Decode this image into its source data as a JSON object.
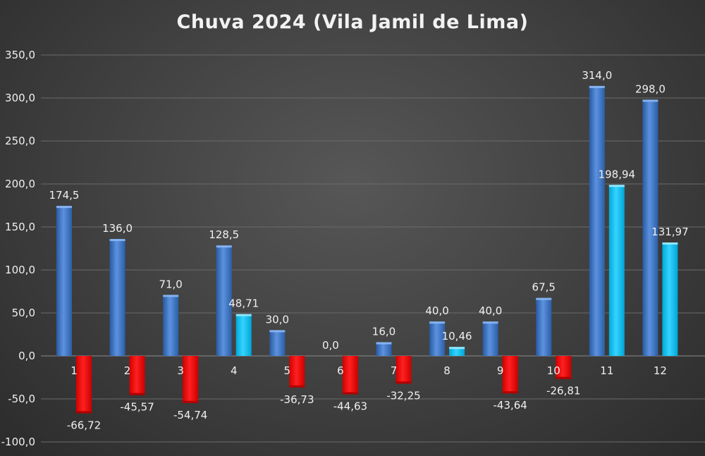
{
  "chart_data": {
    "type": "bar",
    "title": "Chuva 2024 (Vila Jamil de Lima)",
    "categories": [
      "1",
      "2",
      "3",
      "4",
      "5",
      "6",
      "7",
      "8",
      "9",
      "10",
      "11",
      "12"
    ],
    "series": [
      {
        "values": [
          174.5,
          136.0,
          71.0,
          128.5,
          30.0,
          0.0,
          16.0,
          40.0,
          40.0,
          67.5,
          314.0,
          298.0
        ],
        "labels": [
          "174,5",
          "136,0",
          "71,0",
          "128,5",
          "30,0",
          "0,0",
          "16,0",
          "40,0",
          "40,0",
          "67,5",
          "314,0",
          "298,0"
        ]
      },
      {
        "values": [
          -66.72,
          -45.57,
          -54.74,
          48.71,
          -36.73,
          -44.63,
          -32.25,
          10.46,
          -43.64,
          -26.81,
          198.94,
          131.97
        ],
        "labels": [
          "-66,72",
          "-45,57",
          "-54,74",
          "48,71",
          "-36,73",
          "-44,63",
          "-32,25",
          "10,46",
          "-43,64",
          "-26,81",
          "198,94",
          "131,97"
        ]
      }
    ],
    "ylim": [
      -100,
      350
    ],
    "yticks": [
      -100,
      -50,
      0,
      50,
      100,
      150,
      200,
      250,
      300,
      350
    ],
    "ytick_labels": [
      "-100,0",
      "-50,0",
      "0,0",
      "50,0",
      "100,0",
      "150,0",
      "200,0",
      "250,0",
      "300,0",
      "350,0"
    ],
    "xlabel": "",
    "ylabel": "",
    "grid": true,
    "legend": "none",
    "colors": {
      "series1": "#3f76c4",
      "positive": "#14c3f0",
      "negative": "#ff0000",
      "grid": "#6a6a6a",
      "text": "#f0f0f0"
    }
  }
}
